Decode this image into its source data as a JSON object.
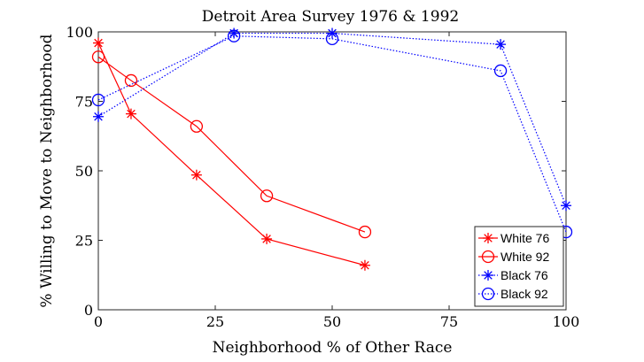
{
  "chart_data": {
    "type": "line",
    "title": "Detroit Area Survey 1976 & 1992",
    "xlabel": "Neighborhood % of Other Race",
    "ylabel": "% Willing to Move to Neighborhood",
    "xlim": [
      0,
      100
    ],
    "ylim": [
      0,
      100
    ],
    "xticks": [
      0,
      25,
      50,
      75,
      100
    ],
    "yticks": [
      0,
      25,
      50,
      75,
      100
    ],
    "grid": false,
    "legend_position": "bottom-right",
    "series": [
      {
        "name": "White 76",
        "color": "#ff0000",
        "marker": "star",
        "line": "solid",
        "x": [
          0,
          7,
          21,
          36,
          57
        ],
        "y": [
          96,
          70.5,
          48.5,
          25.5,
          16
        ]
      },
      {
        "name": "White 92",
        "color": "#ff0000",
        "marker": "circle",
        "line": "solid",
        "x": [
          0,
          7,
          21,
          36,
          57
        ],
        "y": [
          91,
          82.5,
          66,
          41,
          28
        ]
      },
      {
        "name": "Black 76",
        "color": "#0000ff",
        "marker": "star",
        "line": "dotted",
        "x": [
          0,
          29,
          50,
          86,
          100
        ],
        "y": [
          69.5,
          99.5,
          99.5,
          95.5,
          37.5
        ]
      },
      {
        "name": "Black 92",
        "color": "#0000ff",
        "marker": "circle",
        "line": "dotted",
        "x": [
          0,
          29,
          50,
          86,
          100
        ],
        "y": [
          75.5,
          98.5,
          97.5,
          86,
          28
        ]
      }
    ]
  }
}
